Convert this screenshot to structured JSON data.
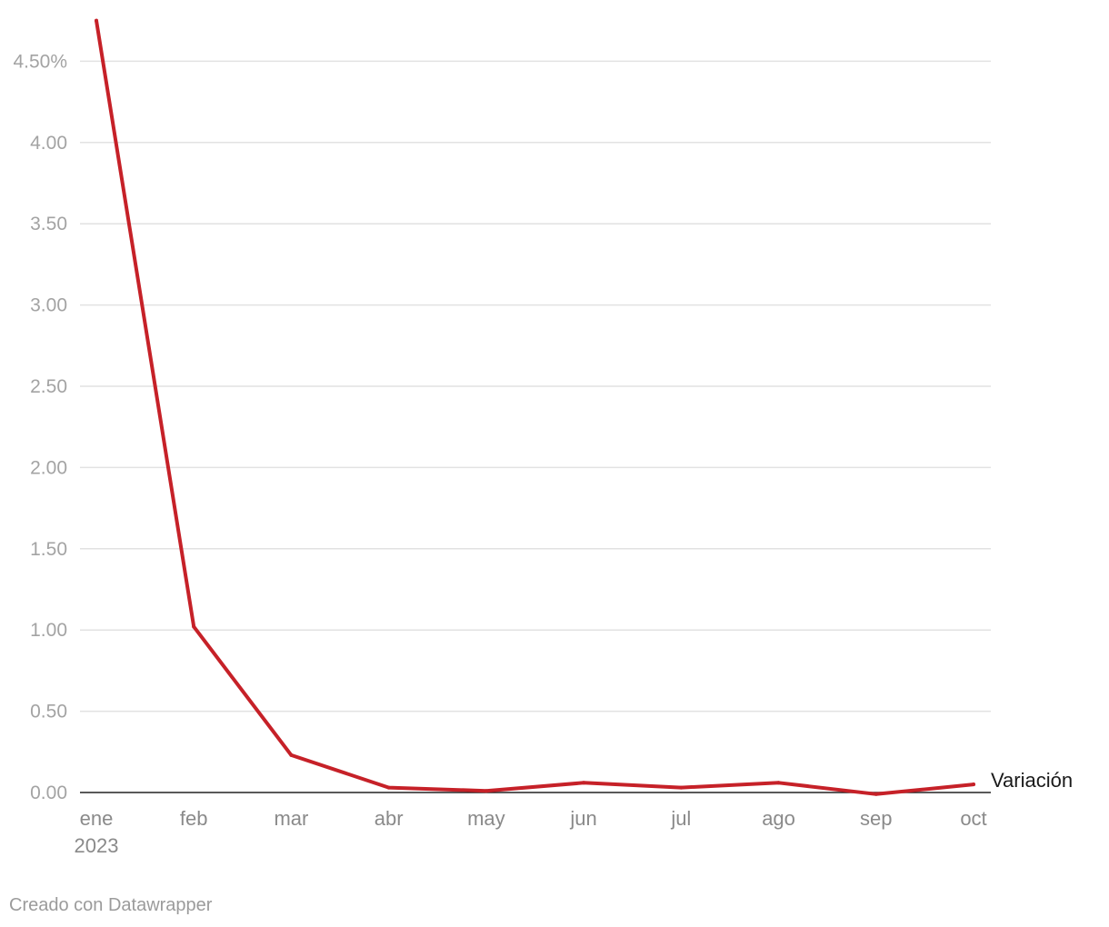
{
  "chart_data": {
    "type": "line",
    "title": "",
    "xlabel": "",
    "ylabel": "",
    "categories": [
      "ene",
      "feb",
      "mar",
      "abr",
      "may",
      "jun",
      "jul",
      "ago",
      "sep",
      "oct"
    ],
    "year_label": "2023",
    "ylim": [
      0,
      4.75
    ],
    "yticks": [
      0,
      0.5,
      1.0,
      1.5,
      2.0,
      2.5,
      3.0,
      3.5,
      4.0,
      4.5
    ],
    "ytick_labels": [
      "0.00",
      "0.50",
      "1.00",
      "1.50",
      "2.00",
      "2.50",
      "3.00",
      "3.50",
      "4.00",
      "4.50%"
    ],
    "grid": true,
    "series": [
      {
        "name": "Variación",
        "color": "#c62128",
        "values": [
          4.75,
          1.02,
          0.23,
          0.03,
          0.01,
          0.06,
          0.03,
          0.06,
          -0.01,
          0.05
        ]
      }
    ]
  },
  "footer": {
    "credit": "Creado con Datawrapper"
  }
}
